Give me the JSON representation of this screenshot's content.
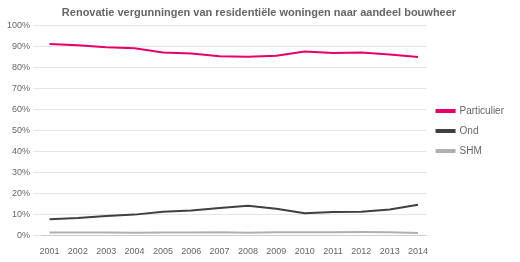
{
  "chart_data": {
    "type": "line",
    "title": "Renovatie vergunningen van residentiële woningen naar aandeel bouwheer",
    "x": [
      2001,
      2002,
      2003,
      2004,
      2005,
      2006,
      2007,
      2008,
      2009,
      2010,
      2011,
      2012,
      2013,
      2014
    ],
    "series": [
      {
        "name": "Particulier",
        "color": "#e8006a",
        "values": [
          0.91,
          0.905,
          0.895,
          0.89,
          0.87,
          0.865,
          0.852,
          0.85,
          0.855,
          0.875,
          0.868,
          0.87,
          0.86,
          0.848
        ]
      },
      {
        "name": "Ond",
        "color": "#404040",
        "values": [
          0.076,
          0.082,
          0.092,
          0.098,
          0.112,
          0.118,
          0.13,
          0.14,
          0.126,
          0.105,
          0.111,
          0.112,
          0.122,
          0.145
        ]
      },
      {
        "name": "SHM",
        "color": "#b0b0b0",
        "values": [
          0.013,
          0.013,
          0.013,
          0.012,
          0.013,
          0.013,
          0.014,
          0.012,
          0.014,
          0.014,
          0.014,
          0.015,
          0.014,
          0.01
        ]
      }
    ],
    "xlim": [
      2000.7,
      2014.3
    ],
    "xticks": [
      2001,
      2002,
      2003,
      2004,
      2005,
      2006,
      2007,
      2008,
      2009,
      2010,
      2011,
      2012,
      2013,
      2014
    ],
    "ylim": [
      0,
      1.0
    ],
    "yticks": [
      {
        "value": 0.0,
        "label": "0%"
      },
      {
        "value": 0.1,
        "label": "10%"
      },
      {
        "value": 0.2,
        "label": "20%"
      },
      {
        "value": 0.3,
        "label": "30%"
      },
      {
        "value": 0.4,
        "label": "40%"
      },
      {
        "value": 0.5,
        "label": "50%"
      },
      {
        "value": 0.6,
        "label": "60%"
      },
      {
        "value": 0.7,
        "label": "70%"
      },
      {
        "value": 0.8,
        "label": "80%"
      },
      {
        "value": 0.9,
        "label": "90%"
      },
      {
        "value": 1.0,
        "label": "100%"
      }
    ],
    "grid": true,
    "legend": "right"
  }
}
